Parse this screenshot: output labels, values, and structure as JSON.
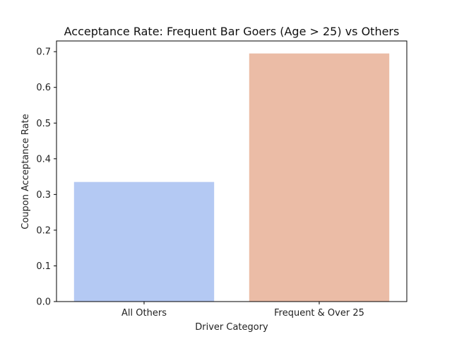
{
  "chart_data": {
    "type": "bar",
    "title": "Acceptance Rate: Frequent Bar Goers (Age > 25) vs Others",
    "xlabel": "Driver Category",
    "ylabel": "Coupon Acceptance Rate",
    "categories": [
      "All Others",
      "Frequent & Over 25"
    ],
    "values": [
      0.335,
      0.695
    ],
    "colors": [
      "#b4c9f3",
      "#ebbca6"
    ],
    "ylim": [
      0,
      0.73
    ],
    "yticks": [
      "0.0",
      "0.1",
      "0.2",
      "0.3",
      "0.4",
      "0.5",
      "0.6",
      "0.7"
    ],
    "grid": false,
    "legend": "none"
  }
}
